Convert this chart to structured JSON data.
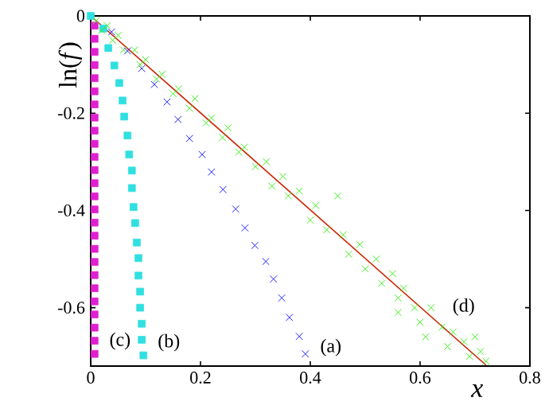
{
  "chart_data": {
    "type": "scatter",
    "xlabel": "x",
    "ylabel": "ln(*f*)",
    "xlim": [
      0,
      0.8
    ],
    "ylim": [
      -0.72,
      0
    ],
    "xticks": [
      0,
      0.2,
      0.4,
      0.6,
      0.8
    ],
    "yticks": [
      -0.6,
      -0.4,
      -0.2,
      0
    ],
    "series": [
      {
        "color": "#2020ff",
        "marker": "cross",
        "x": [
          0.038,
          0.067,
          0.093,
          0.116,
          0.139,
          0.159,
          0.18,
          0.203,
          0.22,
          0.241,
          0.264,
          0.281,
          0.299,
          0.319,
          0.333,
          0.348,
          0.362,
          0.38,
          0.391
        ],
        "values": [
          -0.033,
          -0.072,
          -0.108,
          -0.141,
          -0.177,
          -0.213,
          -0.252,
          -0.285,
          -0.321,
          -0.357,
          -0.397,
          -0.436,
          -0.472,
          -0.505,
          -0.541,
          -0.58,
          -0.62,
          -0.659,
          -0.695
        ]
      },
      {
        "color": "#30e0e0",
        "marker": "square",
        "x": [
          0,
          0.023,
          0.032,
          0.043,
          0.052,
          0.058,
          0.061,
          0.067,
          0.07,
          0.075,
          0.075,
          0.078,
          0.081,
          0.084,
          0.087,
          0.087,
          0.09,
          0.09,
          0.093,
          0.093,
          0.096
        ],
        "values": [
          0,
          -0.026,
          -0.066,
          -0.102,
          -0.138,
          -0.174,
          -0.207,
          -0.246,
          -0.285,
          -0.318,
          -0.354,
          -0.393,
          -0.426,
          -0.466,
          -0.498,
          -0.534,
          -0.567,
          -0.6,
          -0.633,
          -0.666,
          -0.698
        ]
      },
      {
        "color": "#e020d0",
        "marker": "square",
        "x": [
          0.007,
          0.007,
          0.007,
          0.007,
          0.007,
          0.007,
          0.007,
          0.007,
          0.007,
          0.007,
          0.007,
          0.007,
          0.007,
          0.007,
          0.007,
          0.007,
          0.007,
          0.007,
          0.007,
          0.007,
          0.007,
          0.007,
          0.007,
          0.007,
          0.007,
          0.007
        ],
        "values": [
          -0.02,
          -0.047,
          -0.074,
          -0.101,
          -0.128,
          -0.155,
          -0.182,
          -0.209,
          -0.236,
          -0.263,
          -0.29,
          -0.317,
          -0.344,
          -0.371,
          -0.398,
          -0.425,
          -0.452,
          -0.479,
          -0.506,
          -0.533,
          -0.56,
          -0.587,
          -0.614,
          -0.641,
          -0.668,
          -0.695
        ]
      },
      {
        "color": "#40ee20",
        "marker": "cross",
        "x": [
          0.01,
          0.02,
          0.03,
          0.04,
          0.05,
          0.06,
          0.08,
          0.09,
          0.1,
          0.12,
          0.13,
          0.15,
          0.16,
          0.18,
          0.19,
          0.21,
          0.22,
          0.24,
          0.25,
          0.27,
          0.28,
          0.3,
          0.32,
          0.33,
          0.35,
          0.36,
          0.38,
          0.4,
          0.41,
          0.43,
          0.45,
          0.46,
          0.47,
          0.49,
          0.5,
          0.52,
          0.53,
          0.55,
          0.56,
          0.56,
          0.57,
          0.59,
          0.6,
          0.61,
          0.62,
          0.64,
          0.65,
          0.66,
          0.68,
          0.69,
          0.7,
          0.71,
          0.72
        ],
        "values": [
          -0.01,
          -0.03,
          -0.02,
          -0.05,
          -0.04,
          -0.07,
          -0.07,
          -0.1,
          -0.09,
          -0.13,
          -0.12,
          -0.16,
          -0.15,
          -0.19,
          -0.17,
          -0.22,
          -0.21,
          -0.25,
          -0.23,
          -0.28,
          -0.27,
          -0.31,
          -0.3,
          -0.35,
          -0.33,
          -0.37,
          -0.36,
          -0.42,
          -0.39,
          -0.44,
          -0.37,
          -0.45,
          -0.49,
          -0.47,
          -0.52,
          -0.5,
          -0.55,
          -0.53,
          -0.58,
          -0.61,
          -0.56,
          -0.6,
          -0.63,
          -0.66,
          -0.6,
          -0.64,
          -0.68,
          -0.65,
          -0.67,
          -0.7,
          -0.66,
          -0.69,
          -0.71
        ]
      },
      {
        "type": "line",
        "color": "#cc2200",
        "marker": "none",
        "x": [
          0,
          0.72
        ],
        "values": [
          0,
          -0.718
        ]
      }
    ],
    "annotations": [
      "(a)",
      "(b)",
      "(c)",
      "(d)"
    ]
  }
}
